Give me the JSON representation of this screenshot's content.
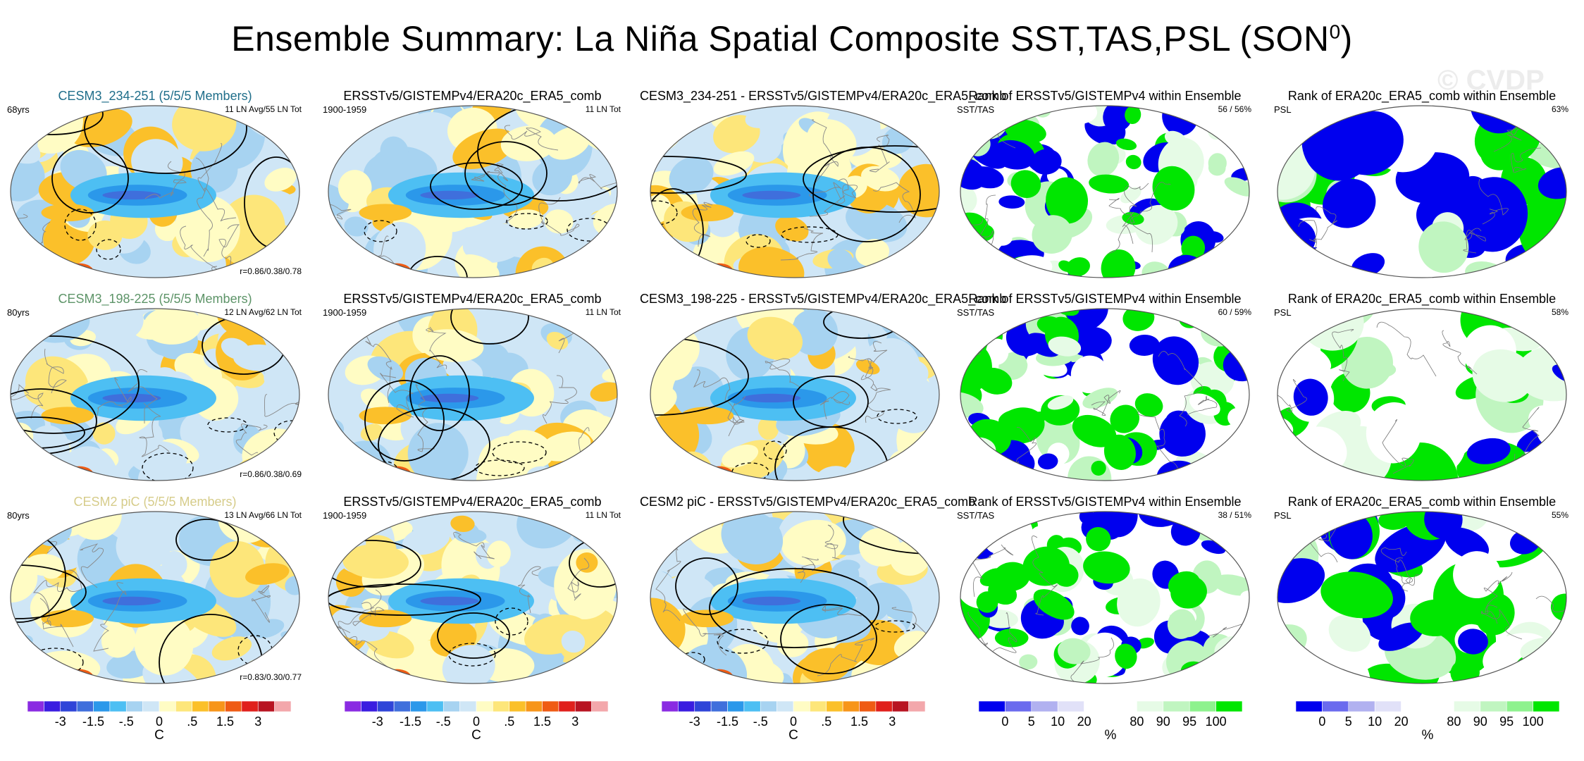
{
  "title": {
    "main": "Ensemble Summary: La Niña Spatial Composite SST,TAS,PSL (SON",
    "sup": "0",
    "close": ")"
  },
  "watermark": "© CVDP",
  "rows": [
    {
      "ens": {
        "title": "CESM3_234-251 (5/5/5 Members)",
        "title_color": "#1f6e8a",
        "years": "68yrs",
        "count": "11 LN Avg/55 LN Tot",
        "corr": "r=0.86/0.38/0.78"
      },
      "obs": {
        "title": "ERSSTv5/GISTEMPv4/ERA20c_ERA5_comb",
        "period": "1900-1959",
        "count": "11 LN Tot"
      },
      "diff": {
        "title": "CESM3_234-251 - ERSSTv5/GISTEMPv4/ERA20c_ERA5_comb"
      },
      "rank1": {
        "title": "Rank of ERSSTv5/GISTEMPv4 within Ensemble",
        "var": "SST/TAS",
        "pct": "56 /  56%"
      },
      "rank2": {
        "title": "Rank of ERA20c_ERA5_comb within Ensemble",
        "var": "PSL",
        "pct": "63%"
      }
    },
    {
      "ens": {
        "title": "CESM3_198-225 (5/5/5 Members)",
        "title_color": "#5d9468",
        "years": "80yrs",
        "count": "12 LN Avg/62 LN Tot",
        "corr": "r=0.86/0.38/0.69"
      },
      "obs": {
        "title": "ERSSTv5/GISTEMPv4/ERA20c_ERA5_comb",
        "period": "1900-1959",
        "count": "11 LN Tot"
      },
      "diff": {
        "title": "CESM3_198-225 - ERSSTv5/GISTEMPv4/ERA20c_ERA5_comb"
      },
      "rank1": {
        "title": "Rank of ERSSTv5/GISTEMPv4 within Ensemble",
        "var": "SST/TAS",
        "pct": "60 /  59%"
      },
      "rank2": {
        "title": "Rank of ERA20c_ERA5_comb within Ensemble",
        "var": "PSL",
        "pct": "58%"
      }
    },
    {
      "ens": {
        "title": "CESM2 piC (5/5/5 Members)",
        "title_color": "#d6cc8a",
        "years": "80yrs",
        "count": "13 LN Avg/66 LN Tot",
        "corr": "r=0.83/0.30/0.77"
      },
      "obs": {
        "title": "ERSSTv5/GISTEMPv4/ERA20c_ERA5_comb",
        "period": "1900-1959",
        "count": "11 LN Tot"
      },
      "diff": {
        "title": "CESM2 piC - ERSSTv5/GISTEMPv4/ERA20c_ERA5_comb"
      },
      "rank1": {
        "title": "Rank of ERSSTv5/GISTEMPv4 within Ensemble",
        "var": "SST/TAS",
        "pct": "38 /  51%"
      },
      "rank2": {
        "title": "Rank of ERA20c_ERA5_comb within Ensemble",
        "var": "PSL",
        "pct": "55%"
      }
    }
  ],
  "colorbars": {
    "anom": {
      "labels": [
        "-3",
        "-1.5",
        "-.5",
        "0",
        ".5",
        "1.5",
        "3"
      ],
      "unit": "C",
      "colors": [
        "#8a2be2",
        "#3a1de0",
        "#2f45d8",
        "#3f6fdc",
        "#2b98ea",
        "#4dbff3",
        "#a7d3f1",
        "#cfe6f6",
        "#fffcc4",
        "#fde67a",
        "#fbc02a",
        "#f7951a",
        "#ef5b14",
        "#e0201c",
        "#b81422",
        "#f3a7ab"
      ]
    },
    "rank": {
      "labels": [
        "0",
        "5",
        "10",
        "20",
        "80",
        "90",
        "95",
        "100"
      ],
      "unit": "%",
      "colors": [
        "#0000ee",
        "#6b6bee",
        "#b1b1f0",
        "#e1e1f8",
        "#ffffff",
        "#ffffff",
        "#e6fbe6",
        "#c0f5c0",
        "#8ef28e",
        "#00e600"
      ]
    }
  },
  "chart_data": [
    {
      "type": "heatmap",
      "panel": "ensemble-mean La Niña composite",
      "rows": [
        "CESM3_234-251",
        "CESM3_198-225",
        "CESM2 piC"
      ],
      "variables": [
        "SST",
        "TAS",
        "PSL"
      ],
      "units": "C",
      "color_levels": [
        -3,
        -1.5,
        -0.5,
        0,
        0.5,
        1.5,
        3
      ],
      "pattern_correlations": [
        "r=0.86/0.38/0.78",
        "r=0.86/0.38/0.69",
        "r=0.83/0.30/0.77"
      ]
    },
    {
      "type": "heatmap",
      "panel": "observed composite",
      "source": "ERSSTv5/GISTEMPv4/ERA20c_ERA5_comb",
      "period": "1900-1959",
      "events": "11 LN Tot"
    },
    {
      "type": "heatmap",
      "panel": "ensemble minus observations",
      "units": "C"
    },
    {
      "type": "heatmap",
      "panel": "rank of obs within ensemble",
      "units": "%",
      "levels": [
        0,
        5,
        10,
        20,
        80,
        90,
        95,
        100
      ],
      "sst_tas_pct": [
        "56 / 56%",
        "60 / 59%",
        "38 / 51%"
      ],
      "psl_pct": [
        "63%",
        "58%",
        "55%"
      ]
    }
  ]
}
